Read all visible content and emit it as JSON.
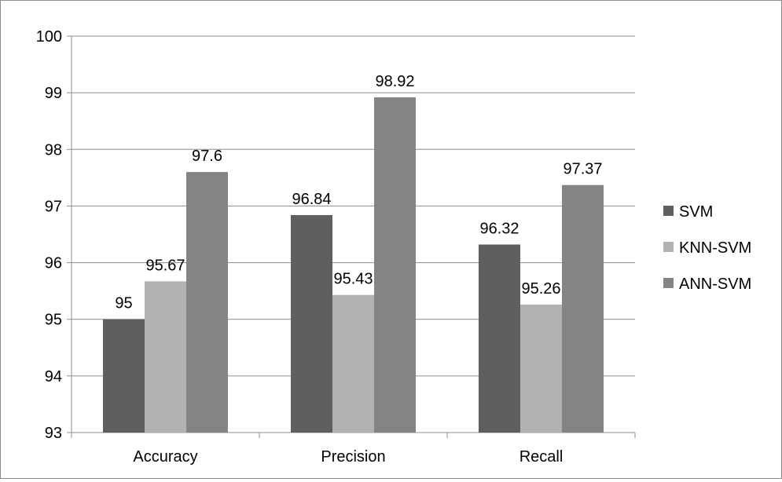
{
  "chart_data": {
    "type": "bar",
    "categories": [
      "Accuracy",
      "Precision",
      "Recall"
    ],
    "series": [
      {
        "name": "SVM",
        "values": [
          95,
          96.84,
          96.32
        ],
        "color": "#5f5f5f"
      },
      {
        "name": "KNN-SVM",
        "values": [
          95.67,
          95.43,
          95.26
        ],
        "color": "#b2b2b2"
      },
      {
        "name": "ANN-SVM",
        "values": [
          97.6,
          98.92,
          97.37
        ],
        "color": "#848484"
      }
    ],
    "data_labels": [
      [
        "95",
        "96.84",
        "96.32"
      ],
      [
        "95.67",
        "95.43",
        "95.26"
      ],
      [
        "97.6",
        "98.92",
        "97.37"
      ]
    ],
    "ylim": [
      93,
      100
    ],
    "yticks": [
      "93",
      "94",
      "95",
      "96",
      "97",
      "98",
      "99",
      "100"
    ],
    "grid": true,
    "legend_position": "right",
    "title": "",
    "xlabel": "",
    "ylabel": ""
  }
}
